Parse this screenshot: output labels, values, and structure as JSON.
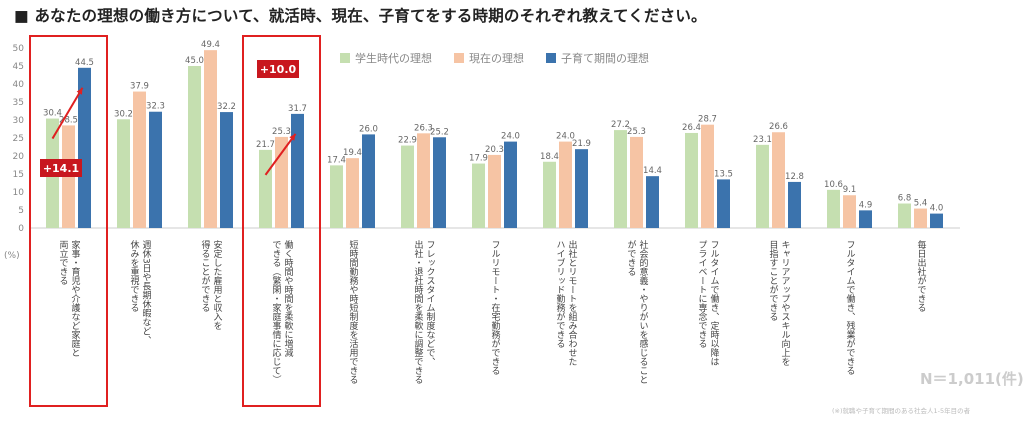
{
  "title": "■ あなたの理想の働き方について、就活時、現在、子育てをする時期のそれぞれ教えてください。",
  "n_label": "N＝1,011(件)",
  "source_note": "(※)就職や子育て期間のある社会人1-5年目の者",
  "colors": {
    "student": "#c5dfb0",
    "current": "#f6c4a4",
    "childcare": "#3b73ad",
    "highlight": "#e02020",
    "badge": "#c8171e"
  },
  "chart_data": {
    "type": "bar",
    "ylim": [
      0,
      50
    ],
    "yticks": [
      0,
      5,
      10,
      15,
      20,
      25,
      30,
      35,
      40,
      45,
      50
    ],
    "yunit": "(%)",
    "legend_position": "top-center",
    "series": [
      {
        "name": "学生時代の理想",
        "values": [
          30.4,
          30.2,
          45.0,
          21.7,
          17.4,
          22.9,
          17.9,
          18.4,
          27.2,
          26.4,
          23.1,
          10.6,
          6.8
        ]
      },
      {
        "name": "現在の理想",
        "values": [
          28.5,
          37.9,
          49.4,
          25.3,
          19.4,
          26.3,
          20.3,
          24.0,
          25.3,
          28.7,
          26.6,
          9.1,
          5.4
        ]
      },
      {
        "name": "子育て期間の理想",
        "values": [
          44.5,
          32.3,
          32.2,
          31.7,
          26.0,
          25.2,
          24.0,
          21.9,
          14.4,
          13.5,
          12.8,
          4.9,
          4.0
        ]
      }
    ],
    "categories": [
      [
        "家事・育児や介護など家庭と",
        "両立できる"
      ],
      [
        "週休3日や長期休暇など、",
        "休みを重視できる"
      ],
      [
        "安定した雇用と収入を",
        "得ることができる"
      ],
      [
        "働く時間や時間を柔軟に増減",
        "できる（繁閑・家庭事情に応じて）"
      ],
      [
        "短時間勤務や時短制度を活用できる"
      ],
      [
        "フレックスタイム制度などで、",
        "出社・退社時間を柔軟に調整できる"
      ],
      [
        "フルリモート・在宅勤務ができる"
      ],
      [
        "出社とリモートを組み合わせた",
        "ハイブリッド勤務ができる"
      ],
      [
        "社会的意義・やりがいを感じること",
        "ができる"
      ],
      [
        "フルタイムで働き、定時以降は",
        "プライベートに専念できる"
      ],
      [
        "キャリアアップやスキル向上を",
        "目指すことができる"
      ],
      [
        "フルタイムで働き、残業ができる"
      ],
      [
        "毎日出社ができる"
      ]
    ],
    "annotations": [
      {
        "text": "+14.1",
        "category_index": 0
      },
      {
        "text": "+10.0",
        "category_index": 3
      }
    ]
  }
}
